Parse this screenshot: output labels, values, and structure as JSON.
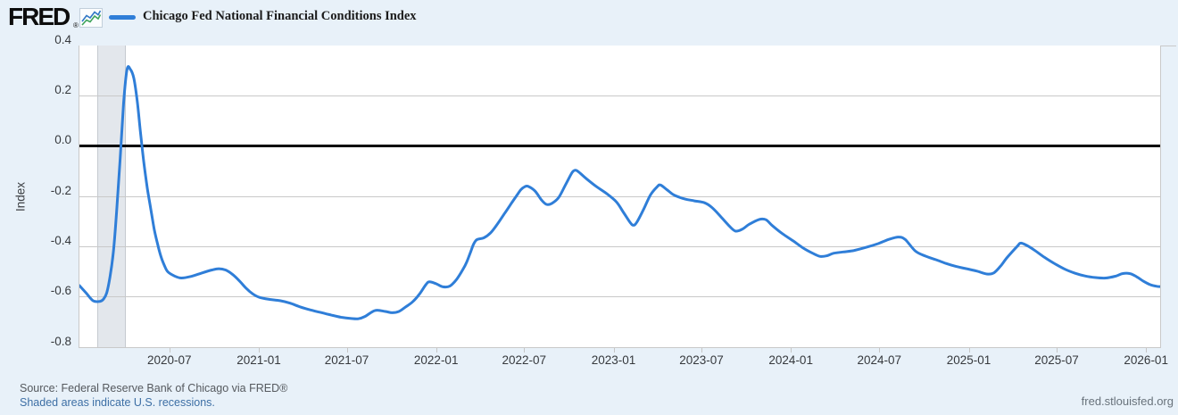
{
  "header": {
    "logo_text": "FRED",
    "registered_mark": "®",
    "legend_label": "Chicago Fed National Financial Conditions Index"
  },
  "footer": {
    "source": "Source: Federal Reserve Bank of Chicago via FRED®",
    "recession_note": "Shaded areas indicate U.S. recessions.",
    "watermark": "fred.stlouisfed.org"
  },
  "colors": {
    "line": "#2f7ed8",
    "page_background": "#e8f1f9",
    "plot_background": "#ffffff",
    "gridline": "#c9c9c9",
    "zero_line": "#000000",
    "recession_band": "#e3e7ec",
    "link": "#3d6fa5"
  },
  "chart_data": {
    "type": "line",
    "title": "Chicago Fed National Financial Conditions Index",
    "xlabel": "",
    "ylabel": "Index",
    "ylim": [
      -0.8,
      0.4
    ],
    "y_ticks": [
      0.4,
      0.2,
      0,
      -0.2,
      -0.4,
      -0.6,
      -0.8
    ],
    "y_tick_labels": [
      "0.4",
      "0.2",
      "0.0",
      "-0.2",
      "-0.4",
      "-0.6",
      "-0.8"
    ],
    "x_range": [
      "2019-12-27",
      "2026-01-30"
    ],
    "x_tick_labels": [
      "2020-07",
      "2021-01",
      "2021-07",
      "2022-01",
      "2022-07",
      "2023-01",
      "2023-07",
      "2024-01",
      "2024-07",
      "2025-01",
      "2025-07",
      "2026-01"
    ],
    "grid": "horizontal",
    "legend_position": "top-left",
    "zero_line": true,
    "recession_bands": [
      {
        "start": "2020-02-01",
        "end": "2020-04-01"
      }
    ],
    "series": [
      {
        "name": "Chicago Fed National Financial Conditions Index",
        "color": "#2f7ed8",
        "points": [
          [
            "2019-12-27",
            -0.555
          ],
          [
            "2020-01-10",
            -0.585
          ],
          [
            "2020-01-24",
            -0.615
          ],
          [
            "2020-02-07",
            -0.618
          ],
          [
            "2020-02-14",
            -0.61
          ],
          [
            "2020-02-21",
            -0.585
          ],
          [
            "2020-02-28",
            -0.52
          ],
          [
            "2020-03-06",
            -0.42
          ],
          [
            "2020-03-13",
            -0.25
          ],
          [
            "2020-03-20",
            -0.05
          ],
          [
            "2020-03-27",
            0.17
          ],
          [
            "2020-04-03",
            0.305
          ],
          [
            "2020-04-10",
            0.305
          ],
          [
            "2020-04-17",
            0.27
          ],
          [
            "2020-04-24",
            0.18
          ],
          [
            "2020-05-01",
            0.05
          ],
          [
            "2020-05-08",
            -0.07
          ],
          [
            "2020-05-15",
            -0.17
          ],
          [
            "2020-05-22",
            -0.25
          ],
          [
            "2020-05-29",
            -0.33
          ],
          [
            "2020-06-05",
            -0.39
          ],
          [
            "2020-06-12",
            -0.44
          ],
          [
            "2020-06-19",
            -0.475
          ],
          [
            "2020-06-26",
            -0.5
          ],
          [
            "2020-07-10",
            -0.517
          ],
          [
            "2020-07-24",
            -0.525
          ],
          [
            "2020-08-14",
            -0.518
          ],
          [
            "2020-09-04",
            -0.505
          ],
          [
            "2020-09-25",
            -0.493
          ],
          [
            "2020-10-09",
            -0.488
          ],
          [
            "2020-10-23",
            -0.493
          ],
          [
            "2020-11-06",
            -0.51
          ],
          [
            "2020-11-20",
            -0.535
          ],
          [
            "2020-12-04",
            -0.565
          ],
          [
            "2020-12-18",
            -0.588
          ],
          [
            "2021-01-01",
            -0.602
          ],
          [
            "2021-01-22",
            -0.61
          ],
          [
            "2021-02-12",
            -0.615
          ],
          [
            "2021-03-05",
            -0.625
          ],
          [
            "2021-03-26",
            -0.64
          ],
          [
            "2021-04-16",
            -0.652
          ],
          [
            "2021-05-07",
            -0.662
          ],
          [
            "2021-05-28",
            -0.672
          ],
          [
            "2021-06-18",
            -0.681
          ],
          [
            "2021-07-09",
            -0.686
          ],
          [
            "2021-07-23",
            -0.687
          ],
          [
            "2021-08-06",
            -0.678
          ],
          [
            "2021-08-27",
            -0.654
          ],
          [
            "2021-09-17",
            -0.658
          ],
          [
            "2021-10-01",
            -0.663
          ],
          [
            "2021-10-15",
            -0.658
          ],
          [
            "2021-10-29",
            -0.64
          ],
          [
            "2021-11-12",
            -0.62
          ],
          [
            "2021-11-26",
            -0.59
          ],
          [
            "2021-12-10",
            -0.55
          ],
          [
            "2021-12-17",
            -0.54
          ],
          [
            "2021-12-31",
            -0.548
          ],
          [
            "2022-01-14",
            -0.56
          ],
          [
            "2022-01-28",
            -0.557
          ],
          [
            "2022-02-11",
            -0.53
          ],
          [
            "2022-02-25",
            -0.487
          ],
          [
            "2022-03-04",
            -0.46
          ],
          [
            "2022-03-11",
            -0.425
          ],
          [
            "2022-03-18",
            -0.39
          ],
          [
            "2022-03-25",
            -0.372
          ],
          [
            "2022-04-08",
            -0.365
          ],
          [
            "2022-04-22",
            -0.345
          ],
          [
            "2022-05-06",
            -0.31
          ],
          [
            "2022-05-20",
            -0.27
          ],
          [
            "2022-06-03",
            -0.23
          ],
          [
            "2022-06-17",
            -0.19
          ],
          [
            "2022-06-24",
            -0.172
          ],
          [
            "2022-07-01",
            -0.162
          ],
          [
            "2022-07-08",
            -0.16
          ],
          [
            "2022-07-22",
            -0.178
          ],
          [
            "2022-08-05",
            -0.215
          ],
          [
            "2022-08-15",
            -0.232
          ],
          [
            "2022-08-26",
            -0.228
          ],
          [
            "2022-09-09",
            -0.205
          ],
          [
            "2022-09-23",
            -0.155
          ],
          [
            "2022-10-07",
            -0.105
          ],
          [
            "2022-10-14",
            -0.096
          ],
          [
            "2022-10-21",
            -0.104
          ],
          [
            "2022-11-04",
            -0.128
          ],
          [
            "2022-11-25",
            -0.16
          ],
          [
            "2022-12-16",
            -0.188
          ],
          [
            "2023-01-06",
            -0.222
          ],
          [
            "2023-01-20",
            -0.262
          ],
          [
            "2023-02-03",
            -0.303
          ],
          [
            "2023-02-10",
            -0.315
          ],
          [
            "2023-02-17",
            -0.303
          ],
          [
            "2023-03-03",
            -0.252
          ],
          [
            "2023-03-17",
            -0.195
          ],
          [
            "2023-03-31",
            -0.162
          ],
          [
            "2023-04-07",
            -0.155
          ],
          [
            "2023-04-21",
            -0.175
          ],
          [
            "2023-05-05",
            -0.195
          ],
          [
            "2023-05-26",
            -0.21
          ],
          [
            "2023-06-16",
            -0.218
          ],
          [
            "2023-07-07",
            -0.226
          ],
          [
            "2023-07-21",
            -0.243
          ],
          [
            "2023-08-04",
            -0.27
          ],
          [
            "2023-08-25",
            -0.315
          ],
          [
            "2023-09-08",
            -0.338
          ],
          [
            "2023-09-22",
            -0.331
          ],
          [
            "2023-10-06",
            -0.312
          ],
          [
            "2023-10-27",
            -0.292
          ],
          [
            "2023-11-10",
            -0.293
          ],
          [
            "2023-11-24",
            -0.318
          ],
          [
            "2023-12-15",
            -0.35
          ],
          [
            "2024-01-05",
            -0.377
          ],
          [
            "2024-01-26",
            -0.406
          ],
          [
            "2024-02-16",
            -0.428
          ],
          [
            "2024-03-01",
            -0.439
          ],
          [
            "2024-03-15",
            -0.436
          ],
          [
            "2024-03-29",
            -0.426
          ],
          [
            "2024-04-19",
            -0.421
          ],
          [
            "2024-05-10",
            -0.415
          ],
          [
            "2024-06-07",
            -0.401
          ],
          [
            "2024-06-28",
            -0.388
          ],
          [
            "2024-07-19",
            -0.372
          ],
          [
            "2024-08-09",
            -0.362
          ],
          [
            "2024-08-23",
            -0.372
          ],
          [
            "2024-09-13",
            -0.418
          ],
          [
            "2024-10-04",
            -0.438
          ],
          [
            "2024-10-25",
            -0.452
          ],
          [
            "2024-11-15",
            -0.467
          ],
          [
            "2024-12-06",
            -0.479
          ],
          [
            "2024-12-27",
            -0.488
          ],
          [
            "2025-01-17",
            -0.497
          ],
          [
            "2025-02-07",
            -0.509
          ],
          [
            "2025-02-21",
            -0.505
          ],
          [
            "2025-03-07",
            -0.478
          ],
          [
            "2025-03-21",
            -0.443
          ],
          [
            "2025-04-11",
            -0.398
          ],
          [
            "2025-04-18",
            -0.386
          ],
          [
            "2025-05-02",
            -0.397
          ],
          [
            "2025-05-16",
            -0.414
          ],
          [
            "2025-06-06",
            -0.443
          ],
          [
            "2025-06-27",
            -0.468
          ],
          [
            "2025-07-18",
            -0.49
          ],
          [
            "2025-08-08",
            -0.506
          ],
          [
            "2025-08-29",
            -0.517
          ],
          [
            "2025-09-19",
            -0.523
          ],
          [
            "2025-10-10",
            -0.525
          ],
          [
            "2025-10-31",
            -0.517
          ],
          [
            "2025-11-14",
            -0.507
          ],
          [
            "2025-11-28",
            -0.507
          ],
          [
            "2025-12-12",
            -0.519
          ],
          [
            "2025-12-26",
            -0.537
          ],
          [
            "2026-01-09",
            -0.551
          ],
          [
            "2026-01-23",
            -0.558
          ],
          [
            "2026-01-30",
            -0.559
          ]
        ]
      }
    ]
  }
}
